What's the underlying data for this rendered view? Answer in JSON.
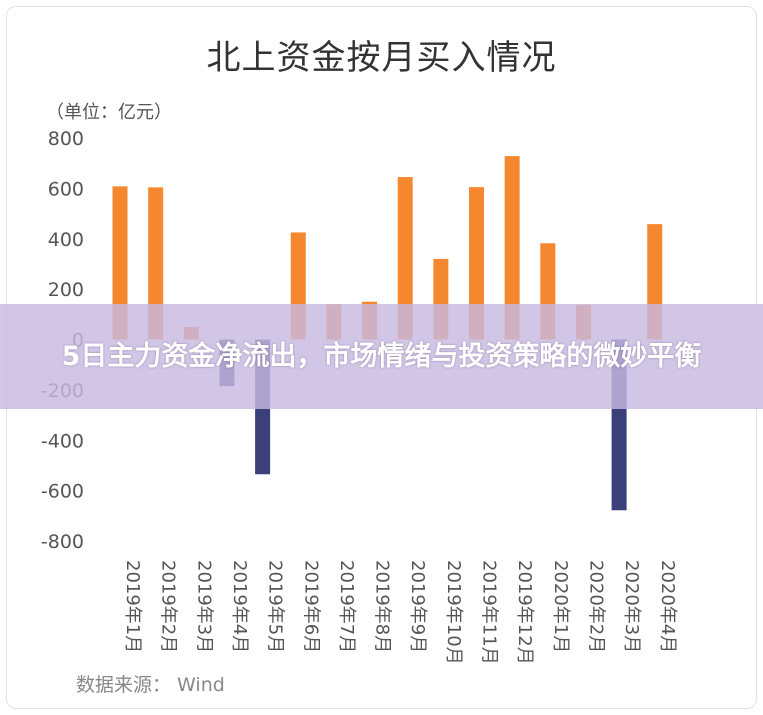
{
  "chart_data": {
    "type": "bar",
    "title": "北上资金按月买入情况",
    "unit_label": "（单位：亿元）",
    "categories": [
      "2019年1月",
      "2019年2月",
      "2019年3月",
      "2019年4月",
      "2019年5月",
      "2019年6月",
      "2019年7月",
      "2019年8月",
      "2019年9月",
      "2019年10月",
      "2019年11月",
      "2019年12月",
      "2020年1月",
      "2020年2月",
      "2020年3月",
      "2020年4月"
    ],
    "values": [
      608,
      604,
      50,
      -185,
      -535,
      425,
      140,
      150,
      645,
      320,
      605,
      728,
      382,
      138,
      -678,
      458
    ],
    "ylim": [
      -800,
      800
    ],
    "yticks": [
      800,
      600,
      400,
      200,
      0,
      -200,
      -400,
      -600,
      -800
    ],
    "colors": {
      "positive": "#F5882F",
      "negative": "#3B3F7A"
    },
    "source": "数据来源： Wind"
  },
  "banner": {
    "text": "5日主力资金净流出，市场情绪与投资策略的微妙平衡"
  }
}
